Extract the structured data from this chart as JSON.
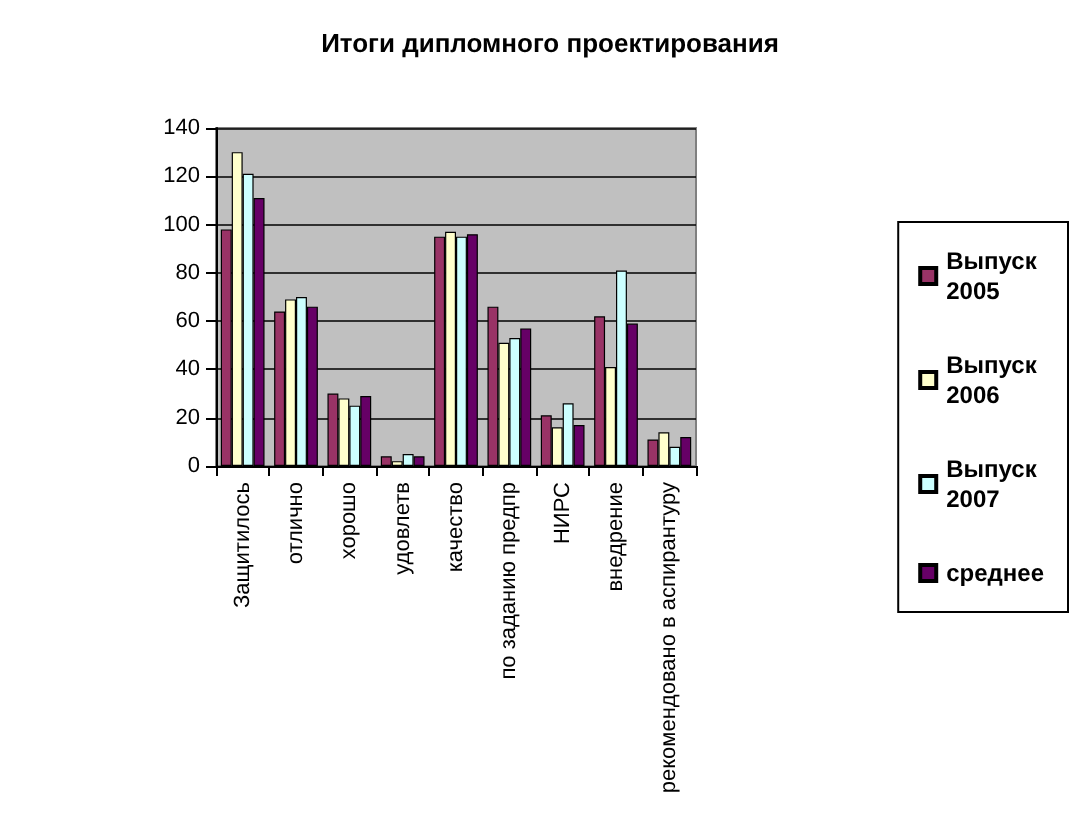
{
  "chart_data": {
    "type": "bar",
    "title": "Итоги дипломного проектирования",
    "categories": [
      "Защитилось",
      "отлично",
      "хорошо",
      "удовлетв",
      "качество",
      "по заданию предпр",
      "НИРС",
      "внедрение",
      "рекомендовано в аспирантуру"
    ],
    "series": [
      {
        "name": "Выпуск 2005",
        "color": "#993366",
        "values": [
          98,
          64,
          30,
          4,
          95,
          66,
          21,
          62,
          11
        ]
      },
      {
        "name": "Выпуск 2006",
        "color": "#ffffcc",
        "values": [
          130,
          69,
          28,
          2,
          97,
          51,
          16,
          41,
          14
        ]
      },
      {
        "name": "Выпуск 2007",
        "color": "#ccffff",
        "values": [
          121,
          70,
          25,
          5,
          95,
          53,
          26,
          81,
          8
        ]
      },
      {
        "name": "среднее",
        "color": "#660066",
        "values": [
          111,
          66,
          29,
          4,
          96,
          57,
          17,
          59,
          12
        ]
      }
    ],
    "ylim": [
      0,
      140
    ],
    "yticks": [
      0,
      20,
      40,
      60,
      80,
      100,
      120,
      140
    ],
    "grid": "y",
    "legend": "right"
  }
}
